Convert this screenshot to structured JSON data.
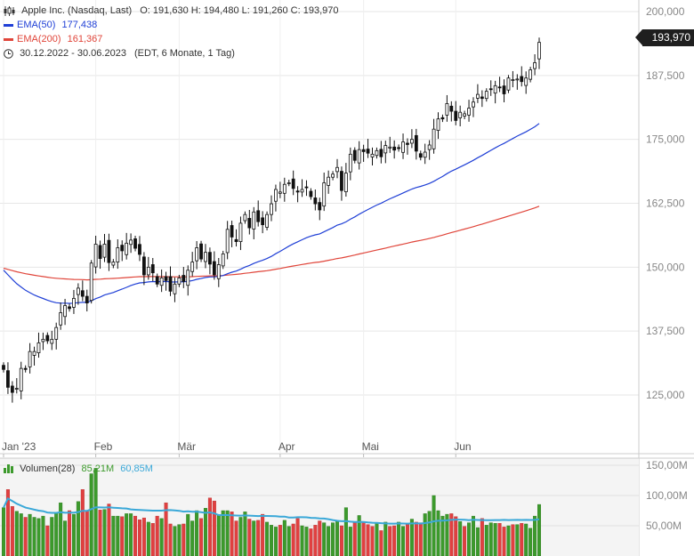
{
  "header": {
    "icon": "candlestick-icon",
    "instrument": "Apple Inc. (Nasdaq, Last)",
    "ohlc": "O: 191,630   H: 194,480   L: 191,260   C: 193,970",
    "ema50_label": "EMA(50)",
    "ema50_value": "177,438",
    "ema200_label": "EMA(200)",
    "ema200_value": "161,367",
    "range": "30.12.2022 - 30.06.2023",
    "range_note": "(EDT, 6 Monate, 1 Tag)",
    "last_price": "193,970"
  },
  "volume_legend": {
    "label": "Volumen(28)",
    "value1": "85,21M",
    "value2": "60,85M"
  },
  "colors": {
    "up": "#3c9a2c",
    "down": "#e04040",
    "ema50": "#1f3fd6",
    "ema200": "#e0453a",
    "volume_avg": "#3aa8d8"
  },
  "chart_data": {
    "type": "candlestick",
    "title": "Apple Inc. (Nasdaq, Last)",
    "x_ticks": [
      "Jan '23",
      "Feb",
      "Mär",
      "Apr",
      "Mai",
      "Jun"
    ],
    "y_ticks": [
      "200,000",
      "187,500",
      "175,000",
      "162,500",
      "150,000",
      "137,500",
      "125,000"
    ],
    "ylim": [
      119,
      202
    ],
    "volume_ticks": [
      "150,00M",
      "100,00M",
      "50,00M"
    ],
    "volume_ylim": [
      0,
      152
    ],
    "grid": true,
    "close": [
      130.0,
      126.5,
      125.5,
      126.3,
      130.2,
      130.0,
      133.5,
      133.5,
      135.2,
      135.9,
      135.6,
      135.9,
      138.2,
      141.1,
      142.5,
      141.9,
      143.9,
      145.9,
      144.3,
      143.0,
      150.8,
      154.5,
      151.7,
      154.5,
      150.9,
      151.0,
      153.8,
      153.2,
      154.7,
      155.3,
      153.7,
      152.5,
      148.5,
      150.0,
      148.9,
      146.7,
      147.9,
      147.4,
      145.3,
      146.7,
      147.9,
      147.2,
      149.4,
      151.0,
      153.8,
      151.6,
      152.9,
      150.6,
      148.5,
      150.5,
      152.6,
      157.4,
      155.9,
      155.0,
      158.6,
      160.3,
      157.7,
      160.8,
      158.9,
      158.3,
      160.3,
      162.4,
      165.2,
      164.7,
      166.2,
      166.5,
      165.4,
      164.7,
      165.2,
      165.6,
      163.8,
      162.4,
      161.2,
      166.5,
      167.6,
      168.2,
      169.5,
      165.0,
      168.4,
      172.1,
      170.9,
      173.0,
      172.6,
      172.3,
      172.1,
      172.8,
      171.6,
      173.8,
      173.5,
      172.9,
      173.2,
      174.5,
      174.0,
      175.0,
      172.7,
      171.5,
      172.5,
      173.9,
      177.0,
      179.0,
      179.0,
      182.0,
      180.5,
      178.7,
      180.3,
      180.0,
      181.1,
      182.3,
      183.8,
      183.0,
      184.4,
      184.8,
      185.5,
      185.2,
      183.9,
      187.0,
      186.7,
      186.8,
      186.3,
      187.0,
      188.6,
      190.0,
      193.97
    ],
    "volume": [
      80,
      110,
      82,
      74,
      70,
      64,
      69,
      64,
      62,
      66,
      50,
      64,
      72,
      88,
      58,
      75,
      69,
      90,
      110,
      74,
      136,
      145,
      76,
      77,
      86,
      66,
      66,
      65,
      70,
      70,
      66,
      60,
      63,
      56,
      54,
      66,
      62,
      88,
      53,
      49,
      52,
      53,
      69,
      58,
      75,
      62,
      79,
      96,
      91,
      68,
      75,
      75,
      73,
      58,
      64,
      73,
      61,
      58,
      59,
      69,
      56,
      51,
      48,
      51,
      59,
      49,
      53,
      62,
      50,
      48,
      45,
      51,
      58,
      55,
      49,
      55,
      57,
      50,
      80,
      48,
      55,
      67,
      56,
      52,
      49,
      54,
      42,
      56,
      49,
      50,
      56,
      49,
      52,
      61,
      56,
      55,
      70,
      74,
      100,
      75,
      66,
      69,
      70,
      65,
      57,
      49,
      55,
      66,
      47,
      62,
      51,
      55,
      54,
      54,
      48,
      50,
      52,
      52,
      54,
      53,
      46,
      66,
      85.21
    ]
  }
}
